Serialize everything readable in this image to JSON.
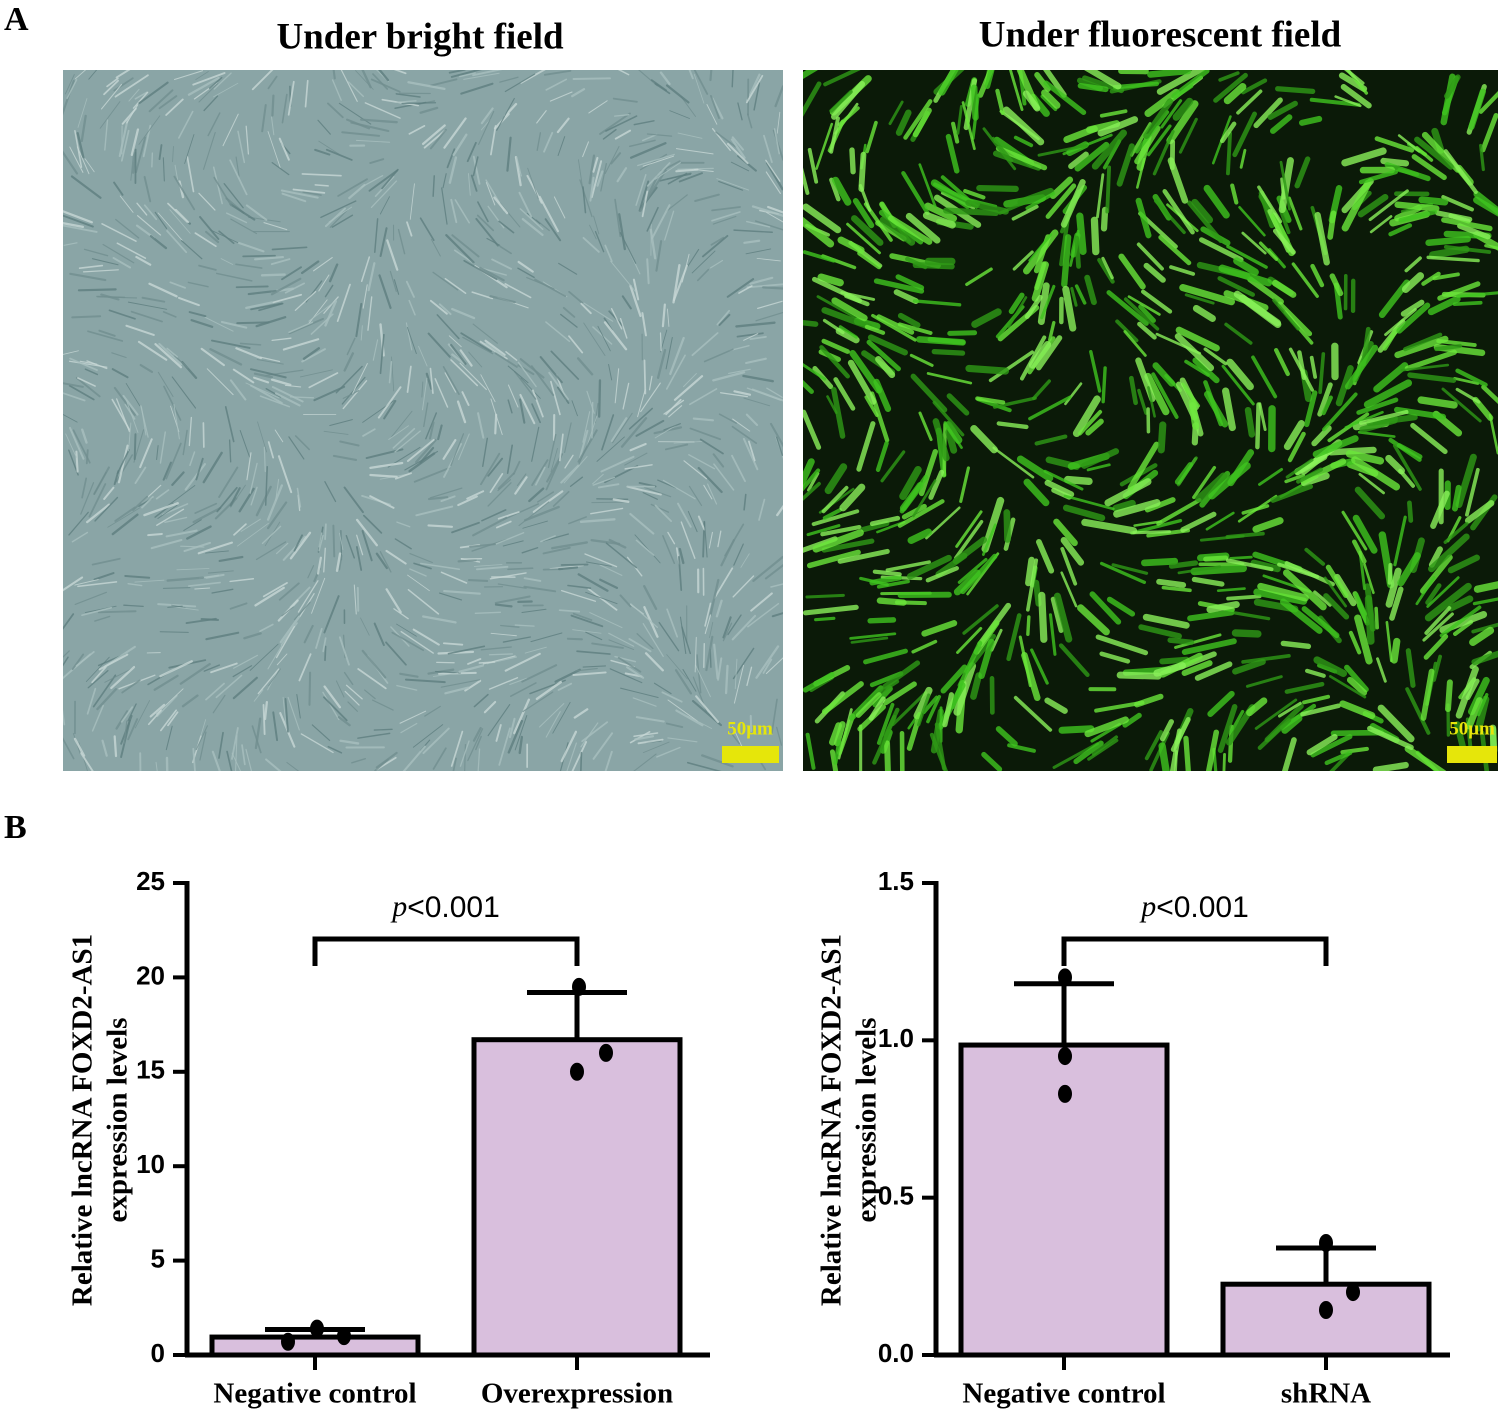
{
  "panel_a": {
    "label": "A",
    "images": [
      {
        "title": "Under bright field",
        "scale_bar": "50μm"
      },
      {
        "title": "Under fluorescent field",
        "scale_bar": "50μm"
      }
    ]
  },
  "panel_b": {
    "label": "B"
  },
  "chart_data": [
    {
      "type": "bar",
      "ylabel": [
        "Relative lncRNA FOXD2-AS1",
        "expression levels"
      ],
      "categories": [
        "Negative control",
        "Overexpression"
      ],
      "values": [
        0.95,
        16.7
      ],
      "errors": [
        0.4,
        2.5
      ],
      "points": [
        [
          0.7,
          1.4,
          1.0
        ],
        [
          19.5,
          16.0,
          15.0
        ]
      ],
      "color": "#d9bfdd",
      "annotation": {
        "italic": "p",
        "rest": "<0.001"
      },
      "ylim": [
        0,
        25
      ],
      "yticks": [
        0,
        5,
        10,
        15,
        20,
        25
      ]
    },
    {
      "type": "bar",
      "ylabel": [
        "Relative lncRNA FOXD2-AS1",
        "expression levels"
      ],
      "categories": [
        "Negative control",
        "shRNA"
      ],
      "values": [
        0.985,
        0.225
      ],
      "errors": [
        0.195,
        0.115
      ],
      "points": [
        [
          1.2,
          0.95,
          0.83
        ],
        [
          0.356,
          0.2,
          0.143
        ]
      ],
      "color": "#d9bfdd",
      "annotation": {
        "italic": "p",
        "rest": "<0.001"
      },
      "ylim": [
        0,
        1.5
      ],
      "yticks": [
        {
          "value": 0,
          "label": "0.0"
        },
        0.5,
        {
          "value": 1,
          "label": "1.0"
        },
        1.5
      ]
    }
  ]
}
